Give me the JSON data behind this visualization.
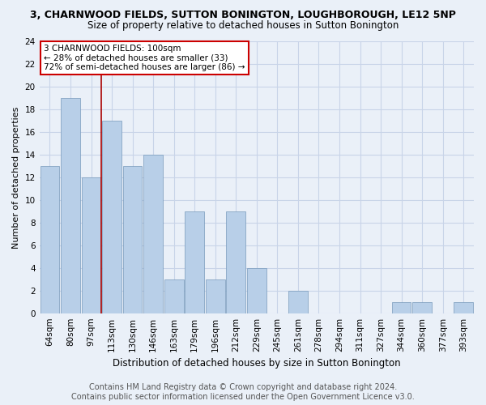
{
  "title": "3, CHARNWOOD FIELDS, SUTTON BONINGTON, LOUGHBOROUGH, LE12 5NP",
  "subtitle": "Size of property relative to detached houses in Sutton Bonington",
  "xlabel": "Distribution of detached houses by size in Sutton Bonington",
  "ylabel": "Number of detached properties",
  "footer_line1": "Contains HM Land Registry data © Crown copyright and database right 2024.",
  "footer_line2": "Contains public sector information licensed under the Open Government Licence v3.0.",
  "categories": [
    "64sqm",
    "80sqm",
    "97sqm",
    "113sqm",
    "130sqm",
    "146sqm",
    "163sqm",
    "179sqm",
    "196sqm",
    "212sqm",
    "229sqm",
    "245sqm",
    "261sqm",
    "278sqm",
    "294sqm",
    "311sqm",
    "327sqm",
    "344sqm",
    "360sqm",
    "377sqm",
    "393sqm"
  ],
  "values": [
    13,
    19,
    12,
    17,
    13,
    14,
    3,
    9,
    3,
    9,
    4,
    0,
    2,
    0,
    0,
    0,
    0,
    1,
    1,
    0,
    1
  ],
  "bar_color": "#b8cfe8",
  "bar_edge_color": "#7799bb",
  "bar_edge_width": 0.5,
  "grid_color": "#c8d4e8",
  "background_color": "#eaf0f8",
  "ylim": [
    0,
    24
  ],
  "yticks": [
    0,
    2,
    4,
    6,
    8,
    10,
    12,
    14,
    16,
    18,
    20,
    22,
    24
  ],
  "vline_x_index": 2,
  "vline_color": "#aa0000",
  "annotation_text": "3 CHARNWOOD FIELDS: 100sqm\n← 28% of detached houses are smaller (33)\n72% of semi-detached houses are larger (86) →",
  "annotation_box_color": "white",
  "annotation_box_edge_color": "#cc0000",
  "annotation_fontsize": 7.5,
  "title_fontsize": 9,
  "subtitle_fontsize": 8.5,
  "xlabel_fontsize": 8.5,
  "ylabel_fontsize": 8,
  "tick_fontsize": 7.5,
  "footer_fontsize": 7
}
